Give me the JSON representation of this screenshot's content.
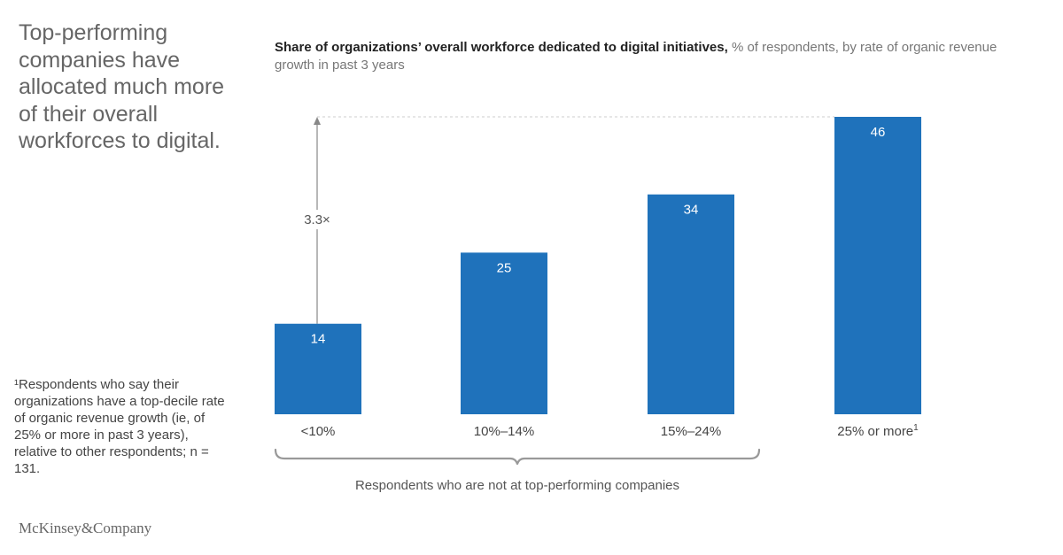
{
  "headline": "Top-performing companies have allocated much more of their overall workforces to digital.",
  "footnote": "¹Respondents who say their organizations have a top-decile rate of organic revenue growth (ie, of 25% or more in past 3 years), relative to other respondents; n = 131.",
  "brand": "McKinsey&Company",
  "chart_title_bold": "Share of organizations’ overall workforce dedicated to digital initiatives,",
  "chart_title_rest": " % of respondents, by rate of organic revenue growth in past 3 years",
  "multiplier_label": "3.3×",
  "group_label": "Respondents who are not at top-performing companies",
  "colors": {
    "bar": "#1f72bb",
    "bar_text": "#ffffff",
    "guide": "#cccccc",
    "arrow": "#888888"
  },
  "chart_data": {
    "type": "bar",
    "categories": [
      "<10%",
      "10%–14%",
      "15%–24%",
      "25% or more"
    ],
    "category_superscripts": [
      "",
      "",
      "",
      "1"
    ],
    "values": [
      14,
      25,
      34,
      46
    ],
    "data_labels": [
      "14",
      "25",
      "34",
      "46"
    ],
    "ylim": [
      0,
      46
    ],
    "grid": false,
    "annotations": [
      "3.3×"
    ]
  }
}
